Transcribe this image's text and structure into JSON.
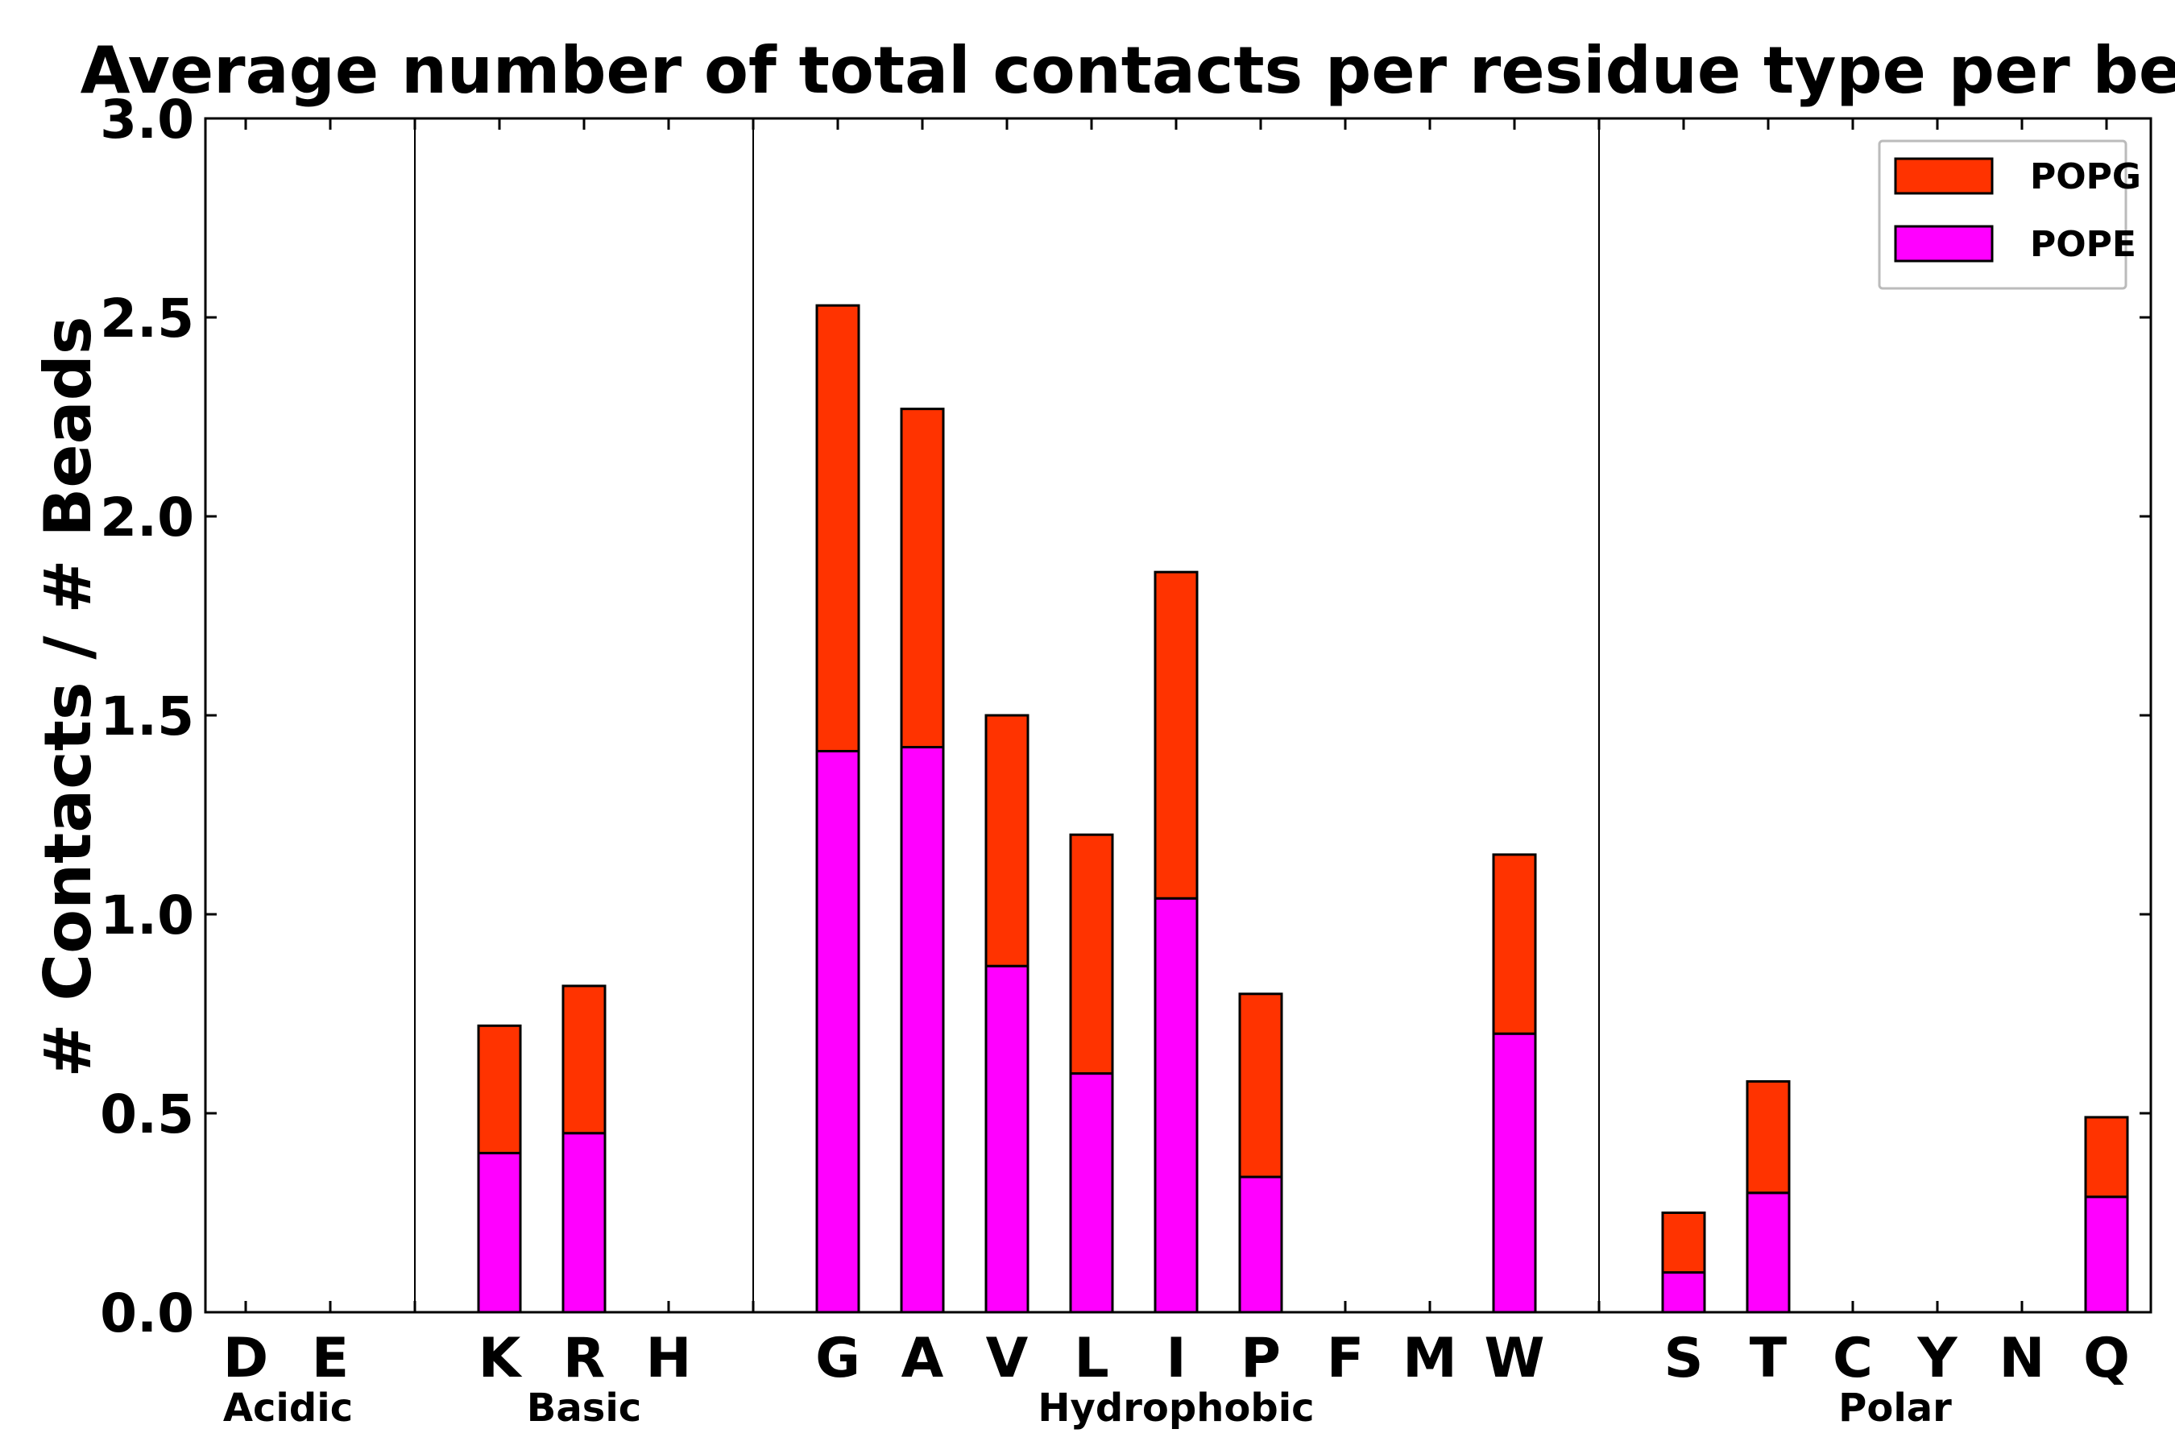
{
  "chart_data": {
    "type": "bar",
    "stacked": true,
    "title": "Average number of total contacts per residue type per bead",
    "xlabel": "",
    "ylabel": "# Contacts / # Beads",
    "ylim": [
      0,
      3.0
    ],
    "yticks": [
      "0.0",
      "0.5",
      "1.0",
      "1.5",
      "2.0",
      "2.5",
      "3.0"
    ],
    "ytick_values": [
      0,
      0.5,
      1.0,
      1.5,
      2.0,
      2.5,
      3.0
    ],
    "grid": false,
    "legend_position": "top-right",
    "categories": [
      "D",
      "E",
      "",
      "K",
      "R",
      "H",
      "",
      "G",
      "A",
      "V",
      "L",
      "I",
      "P",
      "F",
      "M",
      "W",
      "",
      "S",
      "T",
      "C",
      "Y",
      "N",
      "Q"
    ],
    "groups": [
      {
        "label": "Acidic",
        "center_index": 0.5
      },
      {
        "label": "Basic",
        "center_index": 4
      },
      {
        "label": "Hydrophobic",
        "center_index": 11
      },
      {
        "label": "Polar",
        "center_index": 19.5
      }
    ],
    "separators_after_index": [
      2,
      6,
      16
    ],
    "series": [
      {
        "name": "POPE",
        "color": "#ff00ff",
        "values": [
          0,
          0,
          0,
          0.4,
          0.45,
          0,
          0,
          1.41,
          1.42,
          0.87,
          0.6,
          1.04,
          0.34,
          0,
          0,
          0.7,
          0,
          0.1,
          0.3,
          0,
          0,
          0,
          0.29
        ]
      },
      {
        "name": "POPG",
        "color": "#ff3300",
        "values": [
          0,
          0,
          0,
          0.32,
          0.37,
          0,
          0,
          1.12,
          0.85,
          0.63,
          0.6,
          0.82,
          0.46,
          0,
          0,
          0.45,
          0,
          0.15,
          0.28,
          0,
          0,
          0,
          0.2
        ]
      }
    ],
    "legend": [
      {
        "name": "POPG",
        "color": "#ff3300"
      },
      {
        "name": "POPE",
        "color": "#ff00ff"
      }
    ]
  }
}
